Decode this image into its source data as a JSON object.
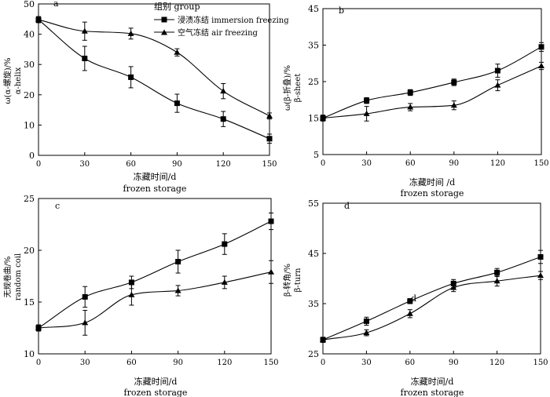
{
  "legend": {
    "title": "组别 group",
    "items": [
      "浸渍冻结 immersion freezing",
      "空气冻结 air freezing"
    ]
  },
  "chart_data": [
    {
      "type": "line",
      "panel_label": "a",
      "xlabel_cn": "冻藏时间/d",
      "xlabel_en": "frozen storage",
      "ylabel_cn": "ω(α-螺旋)/%",
      "ylabel_en": "α-helix",
      "x": [
        0,
        30,
        60,
        90,
        120,
        150
      ],
      "xlim": [
        0,
        150
      ],
      "ylim": [
        0,
        50
      ],
      "yticks": [
        0,
        10,
        20,
        30,
        40,
        50
      ],
      "series": [
        {
          "name": "浸渍冻结 immersion freezing",
          "marker": "square",
          "values": [
            44.8,
            32.0,
            25.8,
            17.2,
            12.0,
            5.5
          ],
          "errors": [
            1.0,
            4.0,
            3.5,
            3.0,
            2.5,
            1.5
          ]
        },
        {
          "name": "空气冻结 air freezing",
          "marker": "triangle",
          "values": [
            44.8,
            41.0,
            40.2,
            34.0,
            21.2,
            13.0
          ],
          "errors": [
            1.0,
            3.0,
            1.8,
            1.2,
            2.5,
            1.0
          ]
        }
      ]
    },
    {
      "type": "line",
      "panel_label": "b",
      "xlabel_cn": "冻藏时间 /d",
      "xlabel_en": "frozen storage",
      "ylabel_cn": "ω(β-折叠)/%",
      "ylabel_en": "β-sheet",
      "x": [
        0,
        30,
        60,
        90,
        120,
        150
      ],
      "xlim": [
        0,
        150
      ],
      "ylim": [
        5,
        45
      ],
      "yticks": [
        5,
        15,
        25,
        35,
        45
      ],
      "series": [
        {
          "name": "浸渍冻结 immersion freezing",
          "marker": "square",
          "values": [
            15.0,
            19.8,
            22.0,
            24.8,
            28.0,
            34.5
          ],
          "errors": [
            0.8,
            0.8,
            0.8,
            0.9,
            1.8,
            1.2
          ]
        },
        {
          "name": "空气冻结 air freezing",
          "marker": "triangle",
          "values": [
            15.0,
            16.2,
            18.0,
            18.5,
            24.0,
            29.3
          ],
          "errors": [
            0.8,
            2.0,
            1.0,
            1.2,
            1.5,
            1.0
          ]
        }
      ]
    },
    {
      "type": "line",
      "panel_label": "c",
      "xlabel_cn": "冻藏时间/d",
      "xlabel_en": "frozen storage",
      "ylabel_cn": "无规卷曲/%",
      "ylabel_en": "random coil",
      "x": [
        0,
        30,
        60,
        90,
        120,
        150
      ],
      "xlim": [
        0,
        150
      ],
      "ylim": [
        10,
        25
      ],
      "yticks": [
        10,
        15,
        20,
        25
      ],
      "series": [
        {
          "name": "浸渍冻结 immersion freezing",
          "marker": "square",
          "values": [
            12.5,
            15.5,
            16.9,
            18.9,
            20.6,
            22.8
          ],
          "errors": [
            0.3,
            1.0,
            0.6,
            1.1,
            1.0,
            0.8
          ]
        },
        {
          "name": "空气冻结 air freezing",
          "marker": "triangle",
          "values": [
            12.5,
            13.0,
            15.7,
            16.1,
            16.9,
            17.9
          ],
          "errors": [
            0.3,
            1.2,
            1.0,
            0.5,
            0.6,
            1.1
          ]
        }
      ]
    },
    {
      "type": "line",
      "panel_label": "d",
      "xlabel_cn": "冻藏时间/d",
      "xlabel_en": "frozen storage",
      "ylabel_cn": "β-转角/%",
      "ylabel_en": "β-turn",
      "x": [
        0,
        30,
        60,
        90,
        120,
        150
      ],
      "xlim": [
        0,
        150
      ],
      "ylim": [
        25,
        55
      ],
      "yticks": [
        25,
        35,
        45,
        55
      ],
      "annotation": "d",
      "series": [
        {
          "name": "浸渍冻结 immersion freezing",
          "marker": "square",
          "values": [
            27.8,
            31.5,
            35.5,
            39.0,
            41.2,
            44.3
          ],
          "errors": [
            0.5,
            0.8,
            0.5,
            0.8,
            0.8,
            1.3
          ]
        },
        {
          "name": "空气冻结 air freezing",
          "marker": "triangle",
          "values": [
            27.8,
            29.2,
            33.0,
            38.2,
            39.5,
            40.6
          ],
          "errors": [
            0.5,
            0.6,
            0.8,
            0.8,
            1.0,
            0.8
          ]
        }
      ]
    }
  ]
}
